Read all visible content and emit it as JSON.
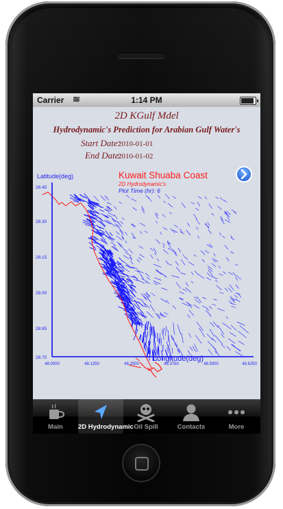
{
  "status_bar": {
    "carrier": "Carrier",
    "time": "1:14 PM"
  },
  "header": {
    "title": "2D KGulf Mdel",
    "subtitle": "Hydrodynamic's Prediction for Arabian Gulf Water's",
    "start_label": "Start Date:",
    "start_value": "2010-01-01",
    "end_label": "End Date:",
    "end_value": "2010-01-02"
  },
  "plot": {
    "title": "Kuwait Shuaba Coast",
    "subtitle1": "2D Hydrodynamic's",
    "subtitle2": "Plot Time (hr): 6",
    "ylabel": "Latitude(deg)",
    "xlabel": "Longitude(deg)",
    "yticks": [
      "28.45",
      "28.30",
      "28.15",
      "28.00",
      "28.85",
      "28.70"
    ],
    "xticks": [
      "48.0000",
      "48.1250",
      "48.2500",
      "48.3750",
      "48.5000",
      "48.6250"
    ],
    "colors": {
      "vectors": "#1a1aff",
      "coast": "#ff1a1a",
      "axis": "#2222ee",
      "title": "#ff1a1a"
    }
  },
  "tabs": [
    {
      "label": "Main",
      "icon": "coffee-cup-icon"
    },
    {
      "label": "2D Hydrodynamic",
      "icon": "navigation-arrow-icon"
    },
    {
      "label": "Oil Spill",
      "icon": "skull-crossbones-icon"
    },
    {
      "label": "Contacts",
      "icon": "person-silhouette-icon"
    },
    {
      "label": "More",
      "icon": "more-dots-icon"
    }
  ]
}
